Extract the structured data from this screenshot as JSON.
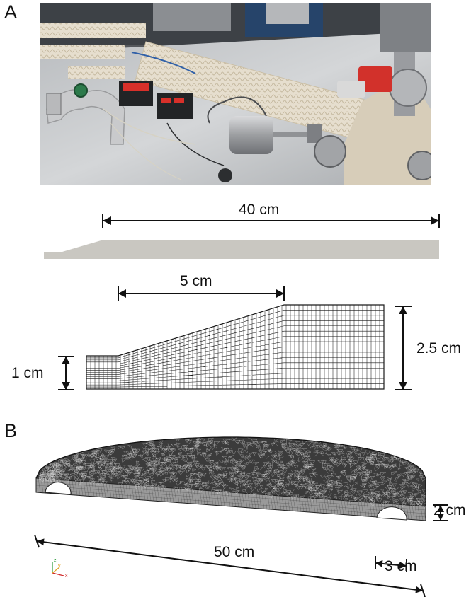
{
  "panels": {
    "a": {
      "label": "A"
    },
    "b": {
      "label": "B"
    }
  },
  "dimensions": {
    "total_length": "40 cm",
    "taper_length": "5 cm",
    "inlet_height": "1 cm",
    "outlet_height": "2.5 cm",
    "disk_length": "50 cm",
    "disk_thickness": "2 cm",
    "groove_width": "3 cm"
  },
  "axes_triad": {
    "z": "z",
    "y": "y",
    "x": "x"
  },
  "colors": {
    "profile_fill": "#c9c7c1",
    "mesh_line": "#1a1a1a",
    "steel": "#a7a9ab",
    "insulation": "#e7dfcf",
    "foil": "#c9cacc",
    "cabinet": "#26446a"
  }
}
